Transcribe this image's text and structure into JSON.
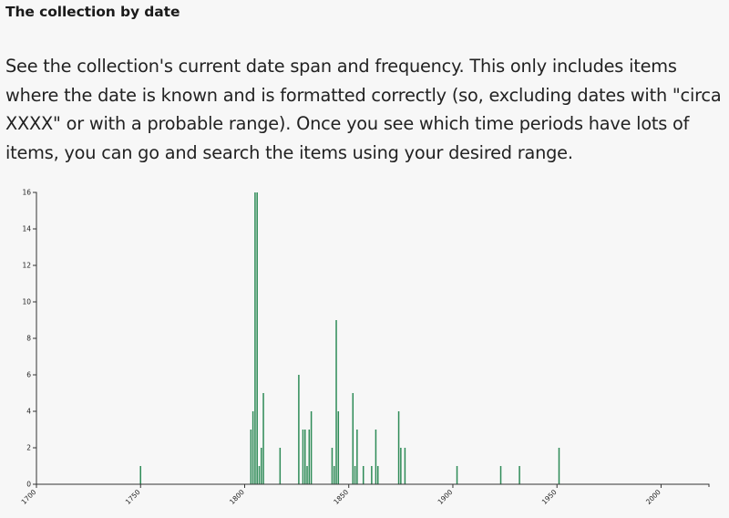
{
  "section": {
    "title": "The collection by date",
    "description": "See the collection's current date span and frequency. This only includes items where the date is known and is formatted correctly (so, excluding dates with \"circa XXXX\" or with a probable range). Once you see which time periods have lots of items, you can go and search the items using your desired range."
  },
  "colors": {
    "bar": "#2e8b57",
    "axis": "#333333"
  },
  "chart_data": {
    "type": "bar",
    "title": "",
    "xlabel": "",
    "ylabel": "",
    "xlim": [
      1700,
      2023
    ],
    "ylim": [
      0,
      16
    ],
    "xticks": [
      1700,
      1750,
      1800,
      1850,
      1900,
      1950,
      2000
    ],
    "yticks": [
      0,
      2,
      4,
      6,
      8,
      10,
      12,
      14,
      16
    ],
    "grid": false,
    "legend": "none",
    "x": [
      1750,
      1803,
      1804,
      1805,
      1806,
      1807,
      1808,
      1809,
      1817,
      1826,
      1828,
      1829,
      1830,
      1831,
      1832,
      1842,
      1843,
      1844,
      1845,
      1852,
      1853,
      1854,
      1857,
      1861,
      1863,
      1864,
      1874,
      1875,
      1877,
      1902,
      1923,
      1932,
      1951
    ],
    "values": [
      1,
      3,
      4,
      16,
      16,
      1,
      2,
      5,
      2,
      6,
      3,
      3,
      1,
      3,
      4,
      2,
      1,
      9,
      4,
      5,
      1,
      3,
      1,
      1,
      3,
      1,
      4,
      2,
      2,
      1,
      1,
      1,
      2
    ]
  }
}
